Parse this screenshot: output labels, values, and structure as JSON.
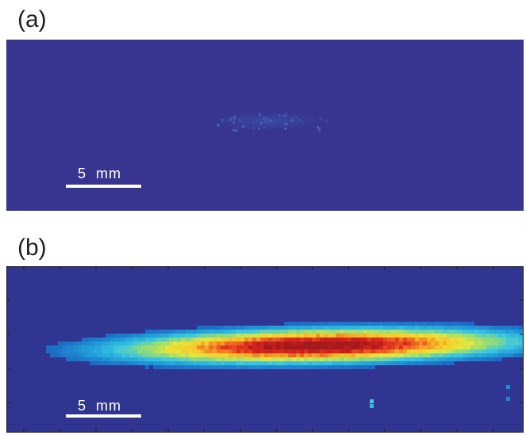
{
  "panels": [
    {
      "label": "(a)",
      "scale_bar": "5  mm",
      "background_color": "#37358f",
      "description_intensity": "faint"
    },
    {
      "label": "(b)",
      "scale_bar": "5  mm",
      "background_color": "#2f3591",
      "description_intensity": "strong"
    }
  ],
  "colormap": [
    "#2f3591",
    "#1c5fc0",
    "#1e9ad6",
    "#38c6e4",
    "#8fdc7a",
    "#e8e63a",
    "#f7c72a",
    "#ef6a22",
    "#d9231f",
    "#a31a1c"
  ]
}
